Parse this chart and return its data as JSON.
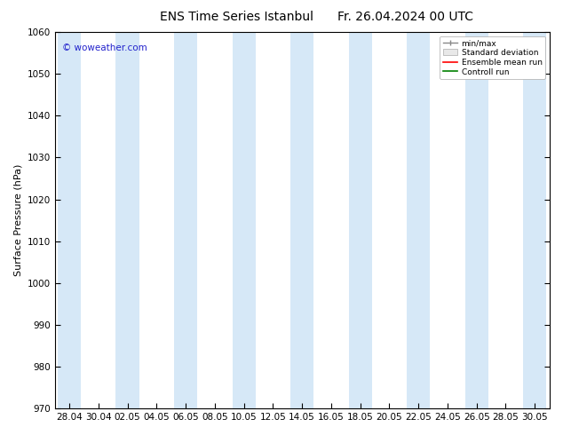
{
  "title": "ENS Time Series Istanbul",
  "title2": "Fr. 26.04.2024 00 UTC",
  "ylabel": "Surface Pressure (hPa)",
  "ylim": [
    970,
    1060
  ],
  "yticks": [
    970,
    980,
    990,
    1000,
    1010,
    1020,
    1030,
    1040,
    1050,
    1060
  ],
  "xtick_labels": [
    "28.04",
    "30.04",
    "02.05",
    "04.05",
    "06.05",
    "08.05",
    "10.05",
    "12.05",
    "14.05",
    "16.05",
    "18.05",
    "20.05",
    "22.05",
    "24.05",
    "26.05",
    "28.05",
    "30.05"
  ],
  "num_ticks": 17,
  "background_color": "#ffffff",
  "band_color": "#d6e8f7",
  "watermark": "© woweather.com",
  "watermark_color": "#2222cc",
  "legend_entries": [
    "min/max",
    "Standard deviation",
    "Ensemble mean run",
    "Controll run"
  ],
  "legend_colors": [
    "#888888",
    "#cccccc",
    "#ff0000",
    "#008000"
  ],
  "title_fontsize": 10,
  "axis_fontsize": 8,
  "tick_fontsize": 7.5
}
